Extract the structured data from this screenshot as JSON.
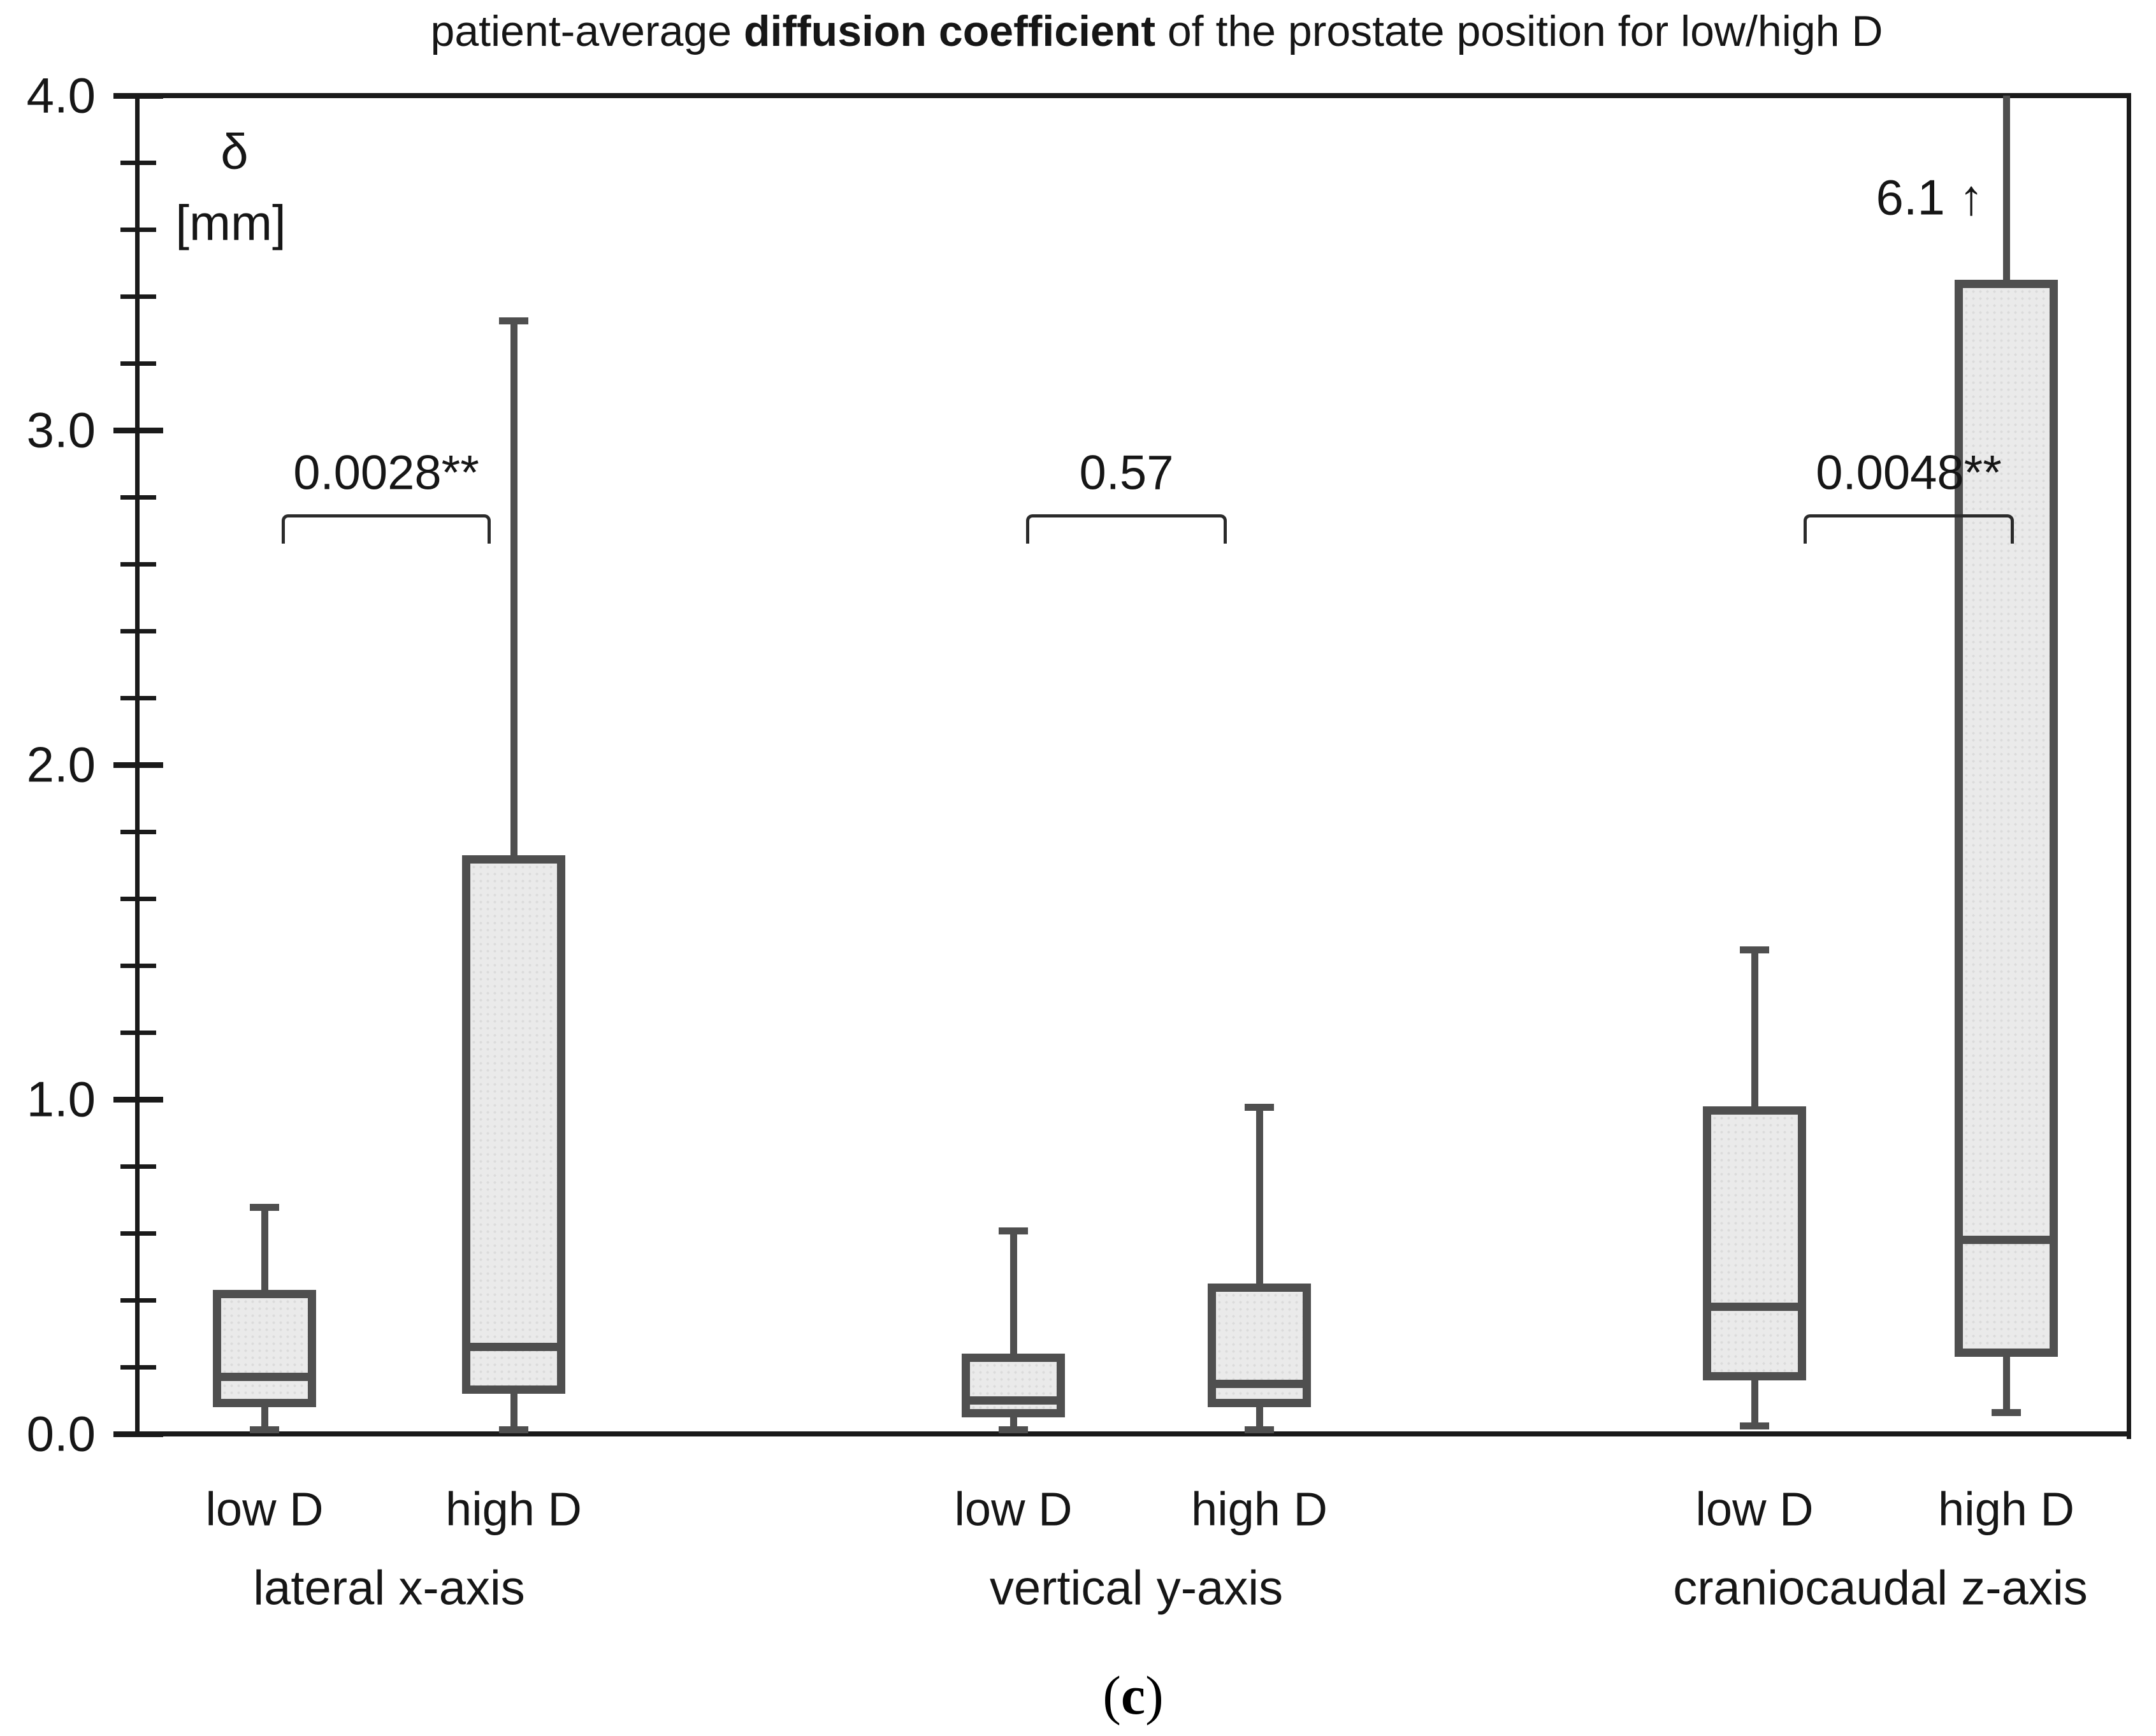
{
  "title": {
    "prefix": "patient-average ",
    "bold": "diffusion coefficient",
    "suffix": " of the prostate position for low/high D"
  },
  "y_axis": {
    "symbol": "δ",
    "unit": "[mm]",
    "min": 0.0,
    "max": 4.0,
    "major_step": 1.0,
    "minor_step": 0.2,
    "tick_labels": [
      "0.0",
      "1.0",
      "2.0",
      "3.0",
      "4.0"
    ]
  },
  "chart_data": {
    "type": "boxplot",
    "title": "patient-average diffusion coefficient of the prostate position for low/high D",
    "ylabel": "δ [mm]",
    "ylim": [
      0.0,
      4.0
    ],
    "grid": "off",
    "groups": [
      {
        "label": "lateral x-axis",
        "boxes": [
          {
            "label": "low D",
            "whisker_low": 0.02,
            "q1": 0.08,
            "median": 0.17,
            "q3": 0.43,
            "whisker_high": 0.67
          },
          {
            "label": "high D",
            "whisker_low": 0.02,
            "q1": 0.12,
            "median": 0.26,
            "q3": 1.73,
            "whisker_high": 3.32
          }
        ]
      },
      {
        "label": "vertical y-axis",
        "boxes": [
          {
            "label": "low D",
            "whisker_low": 0.02,
            "q1": 0.05,
            "median": 0.1,
            "q3": 0.24,
            "whisker_high": 0.6
          },
          {
            "label": "high D",
            "whisker_low": 0.02,
            "q1": 0.08,
            "median": 0.15,
            "q3": 0.45,
            "whisker_high": 0.97
          }
        ]
      },
      {
        "label": "craniocaudal z-axis",
        "boxes": [
          {
            "label": "low D",
            "whisker_low": 0.03,
            "q1": 0.16,
            "median": 0.38,
            "q3": 0.98,
            "whisker_high": 1.44
          },
          {
            "label": "high D",
            "whisker_low": 0.07,
            "q1": 0.23,
            "median": 0.58,
            "q3": 3.45,
            "whisker_high": 6.1,
            "whisker_clipped_at": 4.0,
            "annotation": "6.1 ↑"
          }
        ]
      }
    ],
    "significance_brackets": [
      {
        "label": "0.0028**",
        "group": "lateral x-axis"
      },
      {
        "label": "0.57",
        "group": "vertical y-axis"
      },
      {
        "label": "0.0048**",
        "group": "craniocaudal z-axis"
      }
    ],
    "annotations": [
      {
        "text": "6.1 ↑",
        "meaning": "clipped whisker maximum of craniocaudal z-axis high D"
      }
    ]
  },
  "caption": {
    "open": "(",
    "letter": "c",
    "close": ")"
  },
  "colors": {
    "background": "#ffffff",
    "box_fill": "#eaeaea",
    "box_border": "#4f4f4f",
    "whisker": "#4f4f4f",
    "axis": "#1a1a1a",
    "bracket": "#2b2b2b",
    "text": "#161616"
  }
}
